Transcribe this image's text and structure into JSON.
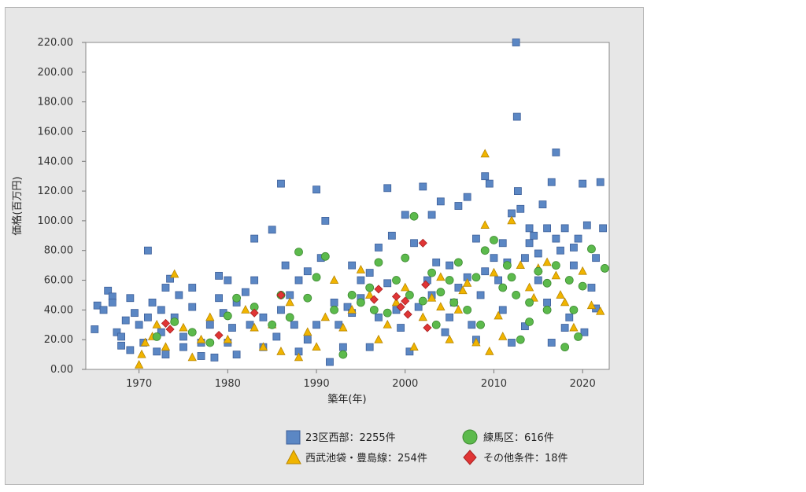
{
  "chart_data": {
    "type": "scatter",
    "title": "",
    "xlabel": "築年(年)",
    "ylabel": "価格(百万円)",
    "xlim": [
      1964,
      2023
    ],
    "ylim": [
      0,
      220
    ],
    "x_ticks": [
      "1970",
      "1980",
      "1990",
      "2000",
      "2010",
      "2020"
    ],
    "y_ticks": [
      "0.00",
      "20.00",
      "40.00",
      "60.00",
      "80.00",
      "100.00",
      "120.00",
      "140.00",
      "160.00",
      "180.00",
      "200.00",
      "220.00"
    ],
    "grid": false,
    "legend_position": "bottom",
    "series": [
      {
        "name": "23区西部：2255件",
        "shape": "square",
        "color": "#5b87c4",
        "points": [
          [
            1965,
            27
          ],
          [
            1965.3,
            43
          ],
          [
            1966.5,
            53
          ],
          [
            1967,
            49
          ],
          [
            1967.5,
            25
          ],
          [
            1968,
            22
          ],
          [
            1968.5,
            33
          ],
          [
            1969,
            48
          ],
          [
            1969.5,
            38
          ],
          [
            1970,
            30
          ],
          [
            1970.5,
            18
          ],
          [
            1971,
            80
          ],
          [
            1971.5,
            45
          ],
          [
            1972,
            12
          ],
          [
            1972.5,
            40
          ],
          [
            1973,
            55
          ],
          [
            1973.5,
            61
          ],
          [
            1974,
            35
          ],
          [
            1975,
            22
          ],
          [
            1976,
            42
          ],
          [
            1977,
            18
          ],
          [
            1978,
            30
          ],
          [
            1979,
            63
          ],
          [
            1979.5,
            38
          ],
          [
            1980,
            60
          ],
          [
            1980.5,
            28
          ],
          [
            1981,
            45
          ],
          [
            1982,
            52
          ],
          [
            1983,
            88
          ],
          [
            1984,
            35
          ],
          [
            1985,
            94
          ],
          [
            1986,
            125
          ],
          [
            1986.5,
            70
          ],
          [
            1987,
            50
          ],
          [
            1988,
            60
          ],
          [
            1989,
            20
          ],
          [
            1990,
            121
          ],
          [
            1990.5,
            75
          ],
          [
            1991,
            100
          ],
          [
            1992,
            45
          ],
          [
            1992.5,
            30
          ],
          [
            1993,
            15
          ],
          [
            1994,
            70
          ],
          [
            1995,
            48
          ],
          [
            1996,
            65
          ],
          [
            1997,
            82
          ],
          [
            1998,
            122
          ],
          [
            1998.5,
            90
          ],
          [
            1999,
            40
          ],
          [
            2000,
            104
          ],
          [
            2001,
            85
          ],
          [
            2002,
            123
          ],
          [
            2002.5,
            60
          ],
          [
            2003,
            104
          ],
          [
            2004,
            113
          ],
          [
            2005,
            70
          ],
          [
            2005.5,
            45
          ],
          [
            2006,
            110
          ],
          [
            2007,
            116
          ],
          [
            2007.5,
            30
          ],
          [
            2008,
            88
          ],
          [
            2008.5,
            50
          ],
          [
            2009,
            130
          ],
          [
            2009.5,
            125
          ],
          [
            2010,
            75
          ],
          [
            2011,
            40
          ],
          [
            2012,
            105
          ],
          [
            2012.5,
            220
          ],
          [
            2012.6,
            170
          ],
          [
            2012.7,
            120
          ],
          [
            2013,
            108
          ],
          [
            2013.5,
            29
          ],
          [
            2014,
            85
          ],
          [
            2015,
            60
          ],
          [
            2015.5,
            111
          ],
          [
            2016,
            45
          ],
          [
            2016.5,
            126
          ],
          [
            2017,
            146
          ],
          [
            2017.5,
            80
          ],
          [
            2018,
            95
          ],
          [
            2018.5,
            35
          ],
          [
            2019,
            70
          ],
          [
            2020,
            125
          ],
          [
            2020.5,
            97
          ],
          [
            2021,
            55
          ],
          [
            2022,
            126
          ],
          [
            2022.3,
            95
          ],
          [
            2021.5,
            41
          ],
          [
            2020.2,
            25
          ],
          [
            2019.5,
            88
          ],
          [
            2016,
            95
          ],
          [
            2014.5,
            90
          ],
          [
            2011,
            85
          ],
          [
            2010.5,
            60
          ],
          [
            2006,
            55
          ],
          [
            2003.5,
            72
          ],
          [
            2001.5,
            42
          ],
          [
            1999.5,
            28
          ],
          [
            1997,
            35
          ],
          [
            1995,
            60
          ],
          [
            1993.5,
            42
          ],
          [
            1991.5,
            5
          ],
          [
            1989,
            66
          ],
          [
            1987.5,
            30
          ],
          [
            1985.5,
            22
          ],
          [
            1984,
            15
          ],
          [
            1982.5,
            30
          ],
          [
            1981,
            10
          ],
          [
            1979,
            48
          ],
          [
            1977,
            9
          ],
          [
            1975,
            15
          ],
          [
            1974.5,
            50
          ],
          [
            1972.5,
            25
          ],
          [
            1971,
            35
          ],
          [
            1969,
            13
          ],
          [
            1968,
            16
          ],
          [
            1966,
            40
          ],
          [
            1967,
            45
          ],
          [
            1976,
            55
          ],
          [
            1978.5,
            8
          ],
          [
            1983,
            60
          ],
          [
            1988,
            12
          ],
          [
            1996,
            15
          ],
          [
            2000.5,
            12
          ],
          [
            2004.5,
            25
          ],
          [
            2008,
            20
          ],
          [
            2012,
            18
          ],
          [
            2016.5,
            18
          ],
          [
            2018,
            28
          ],
          [
            2013.5,
            75
          ],
          [
            2015,
            78
          ],
          [
            2011.5,
            72
          ],
          [
            2009,
            66
          ],
          [
            2007,
            62
          ],
          [
            2005,
            35
          ],
          [
            2003,
            50
          ],
          [
            1998,
            58
          ],
          [
            1994,
            38
          ],
          [
            1990,
            30
          ],
          [
            1986,
            40
          ],
          [
            1980,
            18
          ],
          [
            1973,
            10
          ],
          [
            2021.5,
            75
          ],
          [
            2017,
            88
          ],
          [
            2019,
            82
          ],
          [
            2014,
            95
          ]
        ]
      },
      {
        "name": "西武池袋・豊島線：254件",
        "shape": "triangle",
        "color": "#f0b400",
        "points": [
          [
            1970,
            3
          ],
          [
            1970.3,
            10
          ],
          [
            1970.7,
            18
          ],
          [
            1971.5,
            22
          ],
          [
            1972,
            30
          ],
          [
            1973,
            15
          ],
          [
            1974,
            64
          ],
          [
            1975,
            28
          ],
          [
            1976,
            8
          ],
          [
            1977,
            20
          ],
          [
            1978,
            35
          ],
          [
            1980,
            20
          ],
          [
            1982,
            40
          ],
          [
            1983,
            28
          ],
          [
            1984,
            15
          ],
          [
            1985,
            30
          ],
          [
            1986,
            12
          ],
          [
            1987,
            45
          ],
          [
            1988,
            8
          ],
          [
            1989,
            25
          ],
          [
            1990,
            15
          ],
          [
            1991,
            35
          ],
          [
            1992,
            60
          ],
          [
            1993,
            28
          ],
          [
            1994,
            40
          ],
          [
            1995,
            67
          ],
          [
            1996,
            50
          ],
          [
            1997,
            20
          ],
          [
            1998,
            30
          ],
          [
            1999,
            45
          ],
          [
            2000,
            55
          ],
          [
            2001,
            15
          ],
          [
            2002,
            35
          ],
          [
            2003,
            48
          ],
          [
            2004,
            62
          ],
          [
            2005,
            20
          ],
          [
            2006,
            40
          ],
          [
            2007,
            58
          ],
          [
            2008,
            18
          ],
          [
            2009,
            145
          ],
          [
            2009,
            97
          ],
          [
            2009.5,
            12
          ],
          [
            2010,
            65
          ],
          [
            2011,
            22
          ],
          [
            2012,
            100
          ],
          [
            2013,
            70
          ],
          [
            2014,
            55
          ],
          [
            2015,
            68
          ],
          [
            2016,
            72
          ],
          [
            2017,
            63
          ],
          [
            2018,
            45
          ],
          [
            2019,
            28
          ],
          [
            2020,
            66
          ],
          [
            2021,
            43
          ],
          [
            2022,
            39
          ],
          [
            2006.5,
            53
          ],
          [
            2004,
            42
          ],
          [
            2010.5,
            36
          ],
          [
            2014.5,
            48
          ],
          [
            2017.5,
            50
          ]
        ]
      },
      {
        "name": "練馬区：616件",
        "shape": "circle",
        "color": "#5cba4c",
        "points": [
          [
            1972,
            22
          ],
          [
            1974,
            32
          ],
          [
            1976,
            25
          ],
          [
            1978,
            18
          ],
          [
            1980,
            36
          ],
          [
            1981,
            48
          ],
          [
            1983,
            42
          ],
          [
            1985,
            30
          ],
          [
            1986,
            50
          ],
          [
            1987,
            35
          ],
          [
            1988,
            79
          ],
          [
            1989,
            48
          ],
          [
            1990,
            62
          ],
          [
            1991,
            76
          ],
          [
            1992,
            40
          ],
          [
            1993,
            10
          ],
          [
            1994,
            50
          ],
          [
            1995,
            45
          ],
          [
            1996,
            55
          ],
          [
            1997,
            72
          ],
          [
            1998,
            38
          ],
          [
            1999,
            60
          ],
          [
            2000,
            75
          ],
          [
            2001,
            103
          ],
          [
            2002,
            46
          ],
          [
            2003,
            65
          ],
          [
            2004,
            52
          ],
          [
            2005,
            60
          ],
          [
            2006,
            72
          ],
          [
            2007,
            40
          ],
          [
            2008,
            62
          ],
          [
            2009,
            80
          ],
          [
            2010,
            87
          ],
          [
            2011,
            55
          ],
          [
            2012,
            62
          ],
          [
            2013,
            20
          ],
          [
            2014,
            45
          ],
          [
            2015,
            66
          ],
          [
            2016,
            58
          ],
          [
            2017,
            70
          ],
          [
            2018,
            15
          ],
          [
            2019,
            40
          ],
          [
            2020,
            56
          ],
          [
            2021,
            81
          ],
          [
            2022.5,
            68
          ],
          [
            2005.5,
            45
          ],
          [
            2003.5,
            30
          ],
          [
            2000.5,
            50
          ],
          [
            1996.5,
            40
          ],
          [
            2008.5,
            30
          ],
          [
            2011.5,
            70
          ],
          [
            2014,
            32
          ],
          [
            2018.5,
            60
          ],
          [
            2012.5,
            50
          ],
          [
            2016,
            40
          ],
          [
            2019.5,
            22
          ]
        ]
      },
      {
        "name": "その他条件：18件",
        "shape": "diamond",
        "color": "#e03535",
        "points": [
          [
            1973,
            31
          ],
          [
            1973.5,
            27
          ],
          [
            1979,
            23
          ],
          [
            1983,
            38
          ],
          [
            1986,
            50
          ],
          [
            1996.5,
            47
          ],
          [
            1997,
            54
          ],
          [
            1999,
            49
          ],
          [
            1999.5,
            42
          ],
          [
            2000,
            46
          ],
          [
            2000.3,
            37
          ],
          [
            2002,
            85
          ],
          [
            2002.3,
            57
          ],
          [
            2002.5,
            28
          ]
        ]
      }
    ]
  }
}
